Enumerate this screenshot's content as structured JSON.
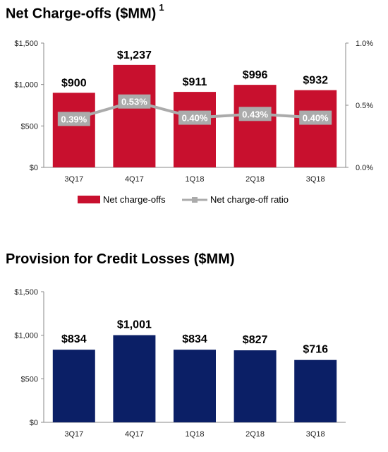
{
  "colors": {
    "bar_red": "#C8102E",
    "bar_navy": "#0B1F66",
    "ratio_gray": "#ABABAB",
    "axis": "#888888"
  },
  "chart_data": [
    {
      "type": "bar",
      "title": "Net Charge-offs ($MM)",
      "title_superscript": "1",
      "categories": [
        "3Q17",
        "4Q17",
        "1Q18",
        "2Q18",
        "3Q18"
      ],
      "series": [
        {
          "name": "Net charge-offs",
          "type": "bar",
          "axis": "left",
          "values": [
            900,
            1237,
            911,
            996,
            932
          ],
          "labels": [
            "$900",
            "$1,237",
            "$911",
            "$996",
            "$932"
          ]
        },
        {
          "name": "Net charge-off ratio",
          "type": "line",
          "axis": "right",
          "values": [
            0.39,
            0.53,
            0.4,
            0.43,
            0.4
          ],
          "labels": [
            "0.39%",
            "0.53%",
            "0.40%",
            "0.43%",
            "0.40%"
          ]
        }
      ],
      "ylim": [
        0,
        1500
      ],
      "y_ticks": [
        0,
        500,
        1000,
        1500
      ],
      "y_tick_labels": [
        "$0",
        "$500",
        "$1,000",
        "$1,500"
      ],
      "y2lim": [
        0,
        1.0
      ],
      "y2_ticks": [
        0,
        0.5,
        1.0
      ],
      "y2_tick_labels": [
        "0.0%",
        "0.5%",
        "1.0%"
      ],
      "legend": "bottom"
    },
    {
      "type": "bar",
      "title": "Provision for Credit Losses ($MM)",
      "categories": [
        "3Q17",
        "4Q17",
        "1Q18",
        "2Q18",
        "3Q18"
      ],
      "series": [
        {
          "type": "bar",
          "values": [
            834,
            1001,
            834,
            827,
            716
          ],
          "labels": [
            "$834",
            "$1,001",
            "$834",
            "$827",
            "$716"
          ]
        }
      ],
      "ylim": [
        0,
        1500
      ],
      "y_ticks": [
        0,
        500,
        1000,
        1500
      ],
      "y_tick_labels": [
        "$0",
        "$500",
        "$1,000",
        "$1,500"
      ]
    }
  ]
}
